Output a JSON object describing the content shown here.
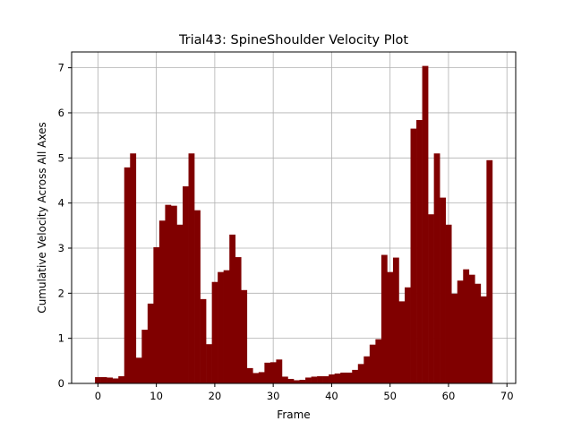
{
  "chart_data": {
    "type": "bar",
    "title": "Trial43: SpineShoulder Velocity Plot",
    "xlabel": "Frame",
    "ylabel": "Cumulative Velocity Across All Axes",
    "xlim": [
      -4.5,
      71.5
    ],
    "ylim": [
      0,
      7.35
    ],
    "xticks": [
      0,
      10,
      20,
      30,
      40,
      50,
      60,
      70
    ],
    "yticks": [
      0,
      1,
      2,
      3,
      4,
      5,
      6,
      7
    ],
    "grid": true,
    "bar_color": "#800000",
    "x": [
      0,
      1,
      2,
      3,
      4,
      5,
      6,
      7,
      8,
      9,
      10,
      11,
      12,
      13,
      14,
      15,
      16,
      17,
      18,
      19,
      20,
      21,
      22,
      23,
      24,
      25,
      26,
      27,
      28,
      29,
      30,
      31,
      32,
      33,
      34,
      35,
      36,
      37,
      38,
      39,
      40,
      41,
      42,
      43,
      44,
      45,
      46,
      47,
      48,
      49,
      50,
      51,
      52,
      53,
      54,
      55,
      56,
      57,
      58,
      59,
      60,
      61,
      62,
      63,
      64,
      65,
      66,
      67,
      68
    ],
    "values": [
      0.14,
      0.14,
      0.13,
      0.11,
      0.16,
      4.79,
      5.1,
      0.57,
      1.19,
      1.77,
      3.02,
      3.61,
      3.96,
      3.94,
      3.52,
      4.37,
      5.1,
      3.84,
      1.87,
      0.87,
      2.25,
      2.47,
      2.51,
      3.3,
      2.8,
      2.07,
      0.34,
      0.23,
      0.25,
      0.46,
      0.47,
      0.53,
      0.15,
      0.1,
      0.07,
      0.08,
      0.13,
      0.15,
      0.16,
      0.16,
      0.2,
      0.22,
      0.24,
      0.24,
      0.3,
      0.43,
      0.6,
      0.86,
      0.98,
      2.85,
      2.47,
      2.79,
      1.82,
      2.13,
      5.65,
      5.84,
      7.04,
      3.75,
      5.1,
      4.12,
      3.52,
      1.99,
      2.28,
      2.53,
      2.41,
      2.21,
      1.93,
      4.95,
      0
    ]
  }
}
